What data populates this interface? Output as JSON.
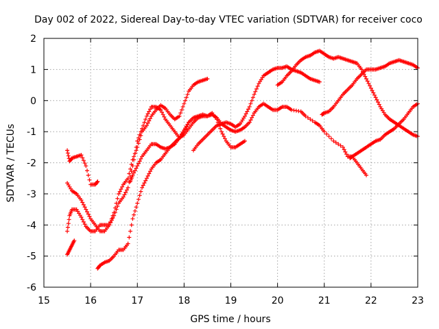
{
  "chart_data": {
    "type": "scatter",
    "title": "Day 002 of 2022, Sidereal Day-to-day VTEC variation (SDTVAR) for receiver coco",
    "xlabel": "GPS time / hours",
    "ylabel": "SDTVAR / TECUs",
    "xlim": [
      15,
      23
    ],
    "ylim": [
      -6,
      2
    ],
    "xticks": [
      "15",
      "16",
      "17",
      "18",
      "19",
      "20",
      "21",
      "22",
      "23"
    ],
    "yticks": [
      "-6",
      "-5",
      "-4",
      "-3",
      "-2",
      "-1",
      "0",
      "1",
      "2"
    ],
    "grid": true,
    "marker": "+",
    "color": "#ff0000",
    "series": [
      {
        "points": [
          [
            15.5,
            -1.6
          ],
          [
            15.55,
            -1.95
          ],
          [
            15.6,
            -1.85
          ],
          [
            15.7,
            -1.8
          ],
          [
            15.8,
            -1.75
          ],
          [
            15.9,
            -2.1
          ],
          [
            16.0,
            -2.7
          ],
          [
            16.1,
            -2.7
          ],
          [
            16.15,
            -2.6
          ]
        ]
      },
      {
        "points": [
          [
            15.5,
            -4.95
          ],
          [
            15.55,
            -4.8
          ],
          [
            15.6,
            -4.65
          ],
          [
            15.65,
            -4.5
          ]
        ]
      },
      {
        "points": [
          [
            15.5,
            -4.2
          ],
          [
            15.55,
            -3.7
          ],
          [
            15.6,
            -3.5
          ],
          [
            15.7,
            -3.5
          ],
          [
            15.8,
            -3.75
          ],
          [
            15.9,
            -4.05
          ],
          [
            16.0,
            -4.2
          ],
          [
            16.1,
            -4.2
          ],
          [
            16.2,
            -4.0
          ],
          [
            16.3,
            -4.0
          ],
          [
            16.4,
            -4.0
          ],
          [
            16.5,
            -3.7
          ],
          [
            16.6,
            -3.3
          ],
          [
            16.7,
            -3.1
          ],
          [
            16.8,
            -2.8
          ],
          [
            16.9,
            -2.1
          ],
          [
            17.0,
            -1.3
          ],
          [
            17.1,
            -0.9
          ],
          [
            17.2,
            -0.5
          ],
          [
            17.3,
            -0.2
          ],
          [
            17.4,
            -0.2
          ],
          [
            17.5,
            -0.3
          ],
          [
            17.6,
            -0.6
          ],
          [
            17.7,
            -0.8
          ],
          [
            17.8,
            -1.0
          ],
          [
            17.9,
            -1.2
          ],
          [
            18.0,
            -1.1
          ],
          [
            18.1,
            -0.9
          ],
          [
            18.2,
            -0.7
          ],
          [
            18.3,
            -0.55
          ],
          [
            18.4,
            -0.5
          ],
          [
            18.5,
            -0.5
          ],
          [
            18.6,
            -0.45
          ],
          [
            18.7,
            -0.55
          ],
          [
            18.8,
            -0.75
          ],
          [
            18.9,
            -0.85
          ],
          [
            19.0,
            -0.95
          ],
          [
            19.1,
            -1.0
          ],
          [
            19.2,
            -0.95
          ],
          [
            19.3,
            -0.85
          ],
          [
            19.4,
            -0.7
          ],
          [
            19.5,
            -0.4
          ],
          [
            19.6,
            -0.2
          ],
          [
            19.7,
            -0.1
          ],
          [
            19.8,
            -0.2
          ],
          [
            19.9,
            -0.3
          ],
          [
            20.0,
            -0.3
          ],
          [
            20.1,
            -0.2
          ],
          [
            20.2,
            -0.2
          ],
          [
            20.3,
            -0.3
          ],
          [
            20.5,
            -0.35
          ],
          [
            20.6,
            -0.5
          ],
          [
            20.8,
            -0.7
          ],
          [
            20.9,
            -0.8
          ],
          [
            21.0,
            -1.0
          ],
          [
            21.2,
            -1.3
          ],
          [
            21.4,
            -1.5
          ],
          [
            21.5,
            -1.8
          ],
          [
            21.6,
            -1.8
          ],
          [
            21.7,
            -2.0
          ],
          [
            21.8,
            -2.2
          ],
          [
            21.9,
            -2.4
          ]
        ]
      },
      {
        "points": [
          [
            15.5,
            -2.65
          ],
          [
            15.6,
            -2.9
          ],
          [
            15.7,
            -3.0
          ],
          [
            15.8,
            -3.2
          ],
          [
            15.9,
            -3.5
          ],
          [
            16.0,
            -3.8
          ],
          [
            16.1,
            -4.0
          ],
          [
            16.2,
            -4.2
          ],
          [
            16.3,
            -4.2
          ],
          [
            16.4,
            -4.0
          ],
          [
            16.5,
            -3.6
          ],
          [
            16.6,
            -3.0
          ],
          [
            16.7,
            -2.7
          ],
          [
            16.8,
            -2.5
          ],
          [
            16.9,
            -1.9
          ],
          [
            17.0,
            -1.5
          ],
          [
            17.1,
            -1.0
          ],
          [
            17.2,
            -0.8
          ],
          [
            17.3,
            -0.5
          ],
          [
            17.4,
            -0.3
          ],
          [
            17.5,
            -0.15
          ],
          [
            17.6,
            -0.25
          ],
          [
            17.7,
            -0.45
          ],
          [
            17.8,
            -0.6
          ],
          [
            17.9,
            -0.5
          ],
          [
            18.0,
            -0.1
          ],
          [
            18.1,
            0.3
          ],
          [
            18.2,
            0.5
          ],
          [
            18.3,
            0.6
          ],
          [
            18.4,
            0.65
          ],
          [
            18.5,
            0.7
          ]
        ]
      },
      {
        "points": [
          [
            16.15,
            -5.4
          ],
          [
            16.2,
            -5.3
          ],
          [
            16.3,
            -5.2
          ],
          [
            16.4,
            -5.15
          ],
          [
            16.5,
            -5.0
          ],
          [
            16.6,
            -4.8
          ],
          [
            16.7,
            -4.8
          ],
          [
            16.8,
            -4.6
          ],
          [
            16.9,
            -3.8
          ],
          [
            17.0,
            -3.3
          ],
          [
            17.1,
            -2.8
          ],
          [
            17.2,
            -2.5
          ],
          [
            17.3,
            -2.2
          ],
          [
            17.4,
            -2.0
          ],
          [
            17.5,
            -1.9
          ],
          [
            17.6,
            -1.7
          ],
          [
            17.7,
            -1.5
          ],
          [
            17.8,
            -1.4
          ],
          [
            17.9,
            -1.2
          ],
          [
            18.0,
            -0.95
          ],
          [
            18.1,
            -0.7
          ],
          [
            18.2,
            -0.55
          ],
          [
            18.3,
            -0.5
          ],
          [
            18.4,
            -0.45
          ],
          [
            18.5,
            -0.5
          ],
          [
            18.6,
            -0.4
          ],
          [
            18.7,
            -0.6
          ],
          [
            18.8,
            -1.0
          ],
          [
            18.9,
            -1.3
          ],
          [
            19.0,
            -1.5
          ],
          [
            19.1,
            -1.5
          ],
          [
            19.2,
            -1.4
          ],
          [
            19.3,
            -1.3
          ]
        ]
      },
      {
        "points": [
          [
            16.85,
            -2.6
          ],
          [
            16.9,
            -2.4
          ],
          [
            17.0,
            -2.1
          ],
          [
            17.1,
            -1.8
          ],
          [
            17.2,
            -1.6
          ],
          [
            17.3,
            -1.4
          ],
          [
            17.4,
            -1.4
          ],
          [
            17.5,
            -1.5
          ],
          [
            17.6,
            -1.55
          ],
          [
            17.7,
            -1.5
          ],
          [
            17.8,
            -1.35
          ],
          [
            17.9,
            -1.2
          ],
          [
            18.0,
            -1.0
          ],
          [
            18.1,
            -0.7
          ]
        ]
      },
      {
        "points": [
          [
            18.2,
            -1.6
          ],
          [
            18.3,
            -1.4
          ],
          [
            18.4,
            -1.25
          ],
          [
            18.5,
            -1.1
          ],
          [
            18.6,
            -0.95
          ],
          [
            18.7,
            -0.8
          ],
          [
            18.8,
            -0.75
          ],
          [
            18.9,
            -0.7
          ],
          [
            19.0,
            -0.75
          ],
          [
            19.1,
            -0.85
          ],
          [
            19.2,
            -0.75
          ],
          [
            19.3,
            -0.5
          ],
          [
            19.4,
            -0.2
          ],
          [
            19.5,
            0.2
          ],
          [
            19.6,
            0.55
          ],
          [
            19.7,
            0.8
          ],
          [
            19.8,
            0.9
          ],
          [
            19.9,
            1.0
          ],
          [
            20.0,
            1.05
          ],
          [
            20.1,
            1.05
          ],
          [
            20.2,
            1.1
          ],
          [
            20.3,
            1.0
          ],
          [
            20.4,
            0.95
          ],
          [
            20.5,
            0.9
          ],
          [
            20.6,
            0.8
          ],
          [
            20.7,
            0.7
          ],
          [
            20.8,
            0.65
          ],
          [
            20.9,
            0.6
          ]
        ]
      },
      {
        "points": [
          [
            20.0,
            0.5
          ],
          [
            20.1,
            0.6
          ],
          [
            20.2,
            0.8
          ],
          [
            20.3,
            0.95
          ],
          [
            20.4,
            1.15
          ],
          [
            20.5,
            1.3
          ],
          [
            20.6,
            1.4
          ],
          [
            20.7,
            1.45
          ],
          [
            20.8,
            1.55
          ],
          [
            20.9,
            1.6
          ],
          [
            21.0,
            1.5
          ],
          [
            21.1,
            1.4
          ],
          [
            21.2,
            1.35
          ],
          [
            21.3,
            1.4
          ],
          [
            21.4,
            1.35
          ],
          [
            21.5,
            1.3
          ],
          [
            21.6,
            1.25
          ],
          [
            21.7,
            1.2
          ],
          [
            21.8,
            1.0
          ],
          [
            21.9,
            0.7
          ],
          [
            22.0,
            0.4
          ],
          [
            22.1,
            0.1
          ],
          [
            22.2,
            -0.2
          ],
          [
            22.3,
            -0.45
          ],
          [
            22.4,
            -0.6
          ],
          [
            22.5,
            -0.7
          ],
          [
            22.6,
            -0.8
          ],
          [
            22.7,
            -0.9
          ],
          [
            22.8,
            -1.0
          ],
          [
            22.9,
            -1.1
          ],
          [
            23.0,
            -1.15
          ]
        ]
      },
      {
        "points": [
          [
            20.95,
            -0.45
          ],
          [
            21.0,
            -0.4
          ],
          [
            21.1,
            -0.35
          ],
          [
            21.2,
            -0.2
          ],
          [
            21.3,
            0.0
          ],
          [
            21.4,
            0.2
          ],
          [
            21.5,
            0.35
          ],
          [
            21.6,
            0.5
          ],
          [
            21.7,
            0.7
          ],
          [
            21.8,
            0.85
          ],
          [
            21.9,
            1.0
          ],
          [
            22.0,
            1.0
          ],
          [
            22.1,
            1.0
          ],
          [
            22.2,
            1.05
          ],
          [
            22.3,
            1.1
          ],
          [
            22.4,
            1.2
          ],
          [
            22.5,
            1.25
          ],
          [
            22.6,
            1.3
          ],
          [
            22.7,
            1.25
          ],
          [
            22.8,
            1.2
          ],
          [
            22.9,
            1.15
          ],
          [
            23.0,
            1.05
          ]
        ]
      },
      {
        "points": [
          [
            21.55,
            -1.85
          ],
          [
            21.6,
            -1.8
          ],
          [
            21.7,
            -1.7
          ],
          [
            21.8,
            -1.6
          ],
          [
            21.9,
            -1.5
          ],
          [
            22.0,
            -1.4
          ],
          [
            22.1,
            -1.3
          ],
          [
            22.2,
            -1.25
          ],
          [
            22.3,
            -1.1
          ],
          [
            22.4,
            -1.0
          ],
          [
            22.5,
            -0.9
          ],
          [
            22.6,
            -0.75
          ],
          [
            22.7,
            -0.6
          ],
          [
            22.8,
            -0.4
          ],
          [
            22.9,
            -0.2
          ],
          [
            23.0,
            -0.1
          ]
        ]
      }
    ]
  }
}
